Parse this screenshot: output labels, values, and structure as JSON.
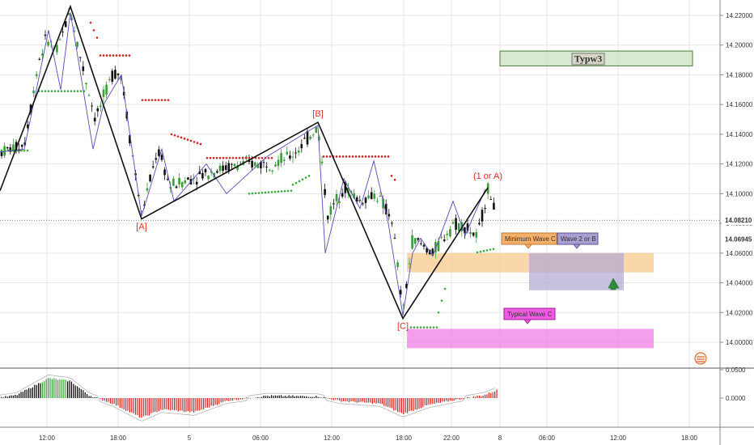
{
  "chart_data": [
    {
      "type": "candlestick",
      "title": "",
      "xlabel": "",
      "ylabel": "",
      "x_tick_labels": [
        "12:00",
        "18:00",
        "5",
        "06:00",
        "12:00",
        "18:00",
        "22:00",
        "8",
        "06:00",
        "12:00",
        "18:00"
      ],
      "ylim": [
        13.995,
        14.228
      ],
      "y_tick_labels": [
        "14.22000",
        "14.20000",
        "14.18000",
        "14.16000",
        "14.14000",
        "14.12000",
        "14.10000",
        "14.08000",
        "14.06000",
        "14.04000",
        "14.02000",
        "14.00000"
      ],
      "y_ticks": [
        14.22,
        14.2,
        14.18,
        14.16,
        14.14,
        14.12,
        14.1,
        14.08,
        14.06,
        14.04,
        14.02,
        14.0
      ],
      "price_labels": [
        {
          "text": "14.08210",
          "value": 14.0821,
          "color": "#111111"
        },
        {
          "text": "14.06945",
          "value": 14.06945,
          "color": "#111111"
        }
      ],
      "elliott_wave_path": [
        {
          "x": 0,
          "y": 14.102
        },
        {
          "x": 87,
          "y": 14.226
        },
        {
          "x": 175,
          "y": 14.083
        },
        {
          "x": 393,
          "y": 14.148
        },
        {
          "x": 498,
          "y": 14.016
        },
        {
          "x": 603,
          "y": 14.104
        }
      ],
      "wave_labels": [
        {
          "text": "[A]",
          "x": 175,
          "y": 14.076
        },
        {
          "text": "[B]",
          "x": 393,
          "y": 14.152
        },
        {
          "text": "[C]",
          "x": 498,
          "y": 14.009
        },
        {
          "text": "(1 or A)",
          "x": 603,
          "y": 14.11
        }
      ],
      "zones": [
        {
          "label": "Typw3",
          "x0": 618,
          "x1": 856,
          "y0": 14.186,
          "y1": 14.196,
          "fill": "#cfe3c6",
          "stroke": "#4c7a3c"
        },
        {
          "label": "Minimum Wave C",
          "x0": 503,
          "x1": 808,
          "y0": 14.047,
          "y1": 14.06,
          "fill": "#f7c98b"
        },
        {
          "label": "Wave 2 or B",
          "x0": 654,
          "x1": 771,
          "y0": 14.035,
          "y1": 14.06,
          "fill": "#b4acd2"
        },
        {
          "label": "Typical Wave C",
          "x0": 503,
          "x1": 808,
          "y0": 13.996,
          "y1": 14.009,
          "fill": "#f27ee6"
        }
      ],
      "oscillator": {
        "y_tick_labels": [
          "0.0500",
          "0.0000"
        ],
        "positive_color": "#000000",
        "negative_color": "#d42020",
        "highlight_color": "#3b9b3b"
      }
    }
  ],
  "colors": {
    "grid": "#e6e6e6",
    "up_candle": "#3b9b3b",
    "down_candle": "#111111",
    "sar_up": "#3ba83b",
    "sar_down": "#d42020",
    "wave_line": "#111111",
    "wave_thin": "#5a47b8"
  },
  "icons": {
    "arrow": "up-arrow-icon",
    "logo": "tradingview-logo-icon"
  }
}
